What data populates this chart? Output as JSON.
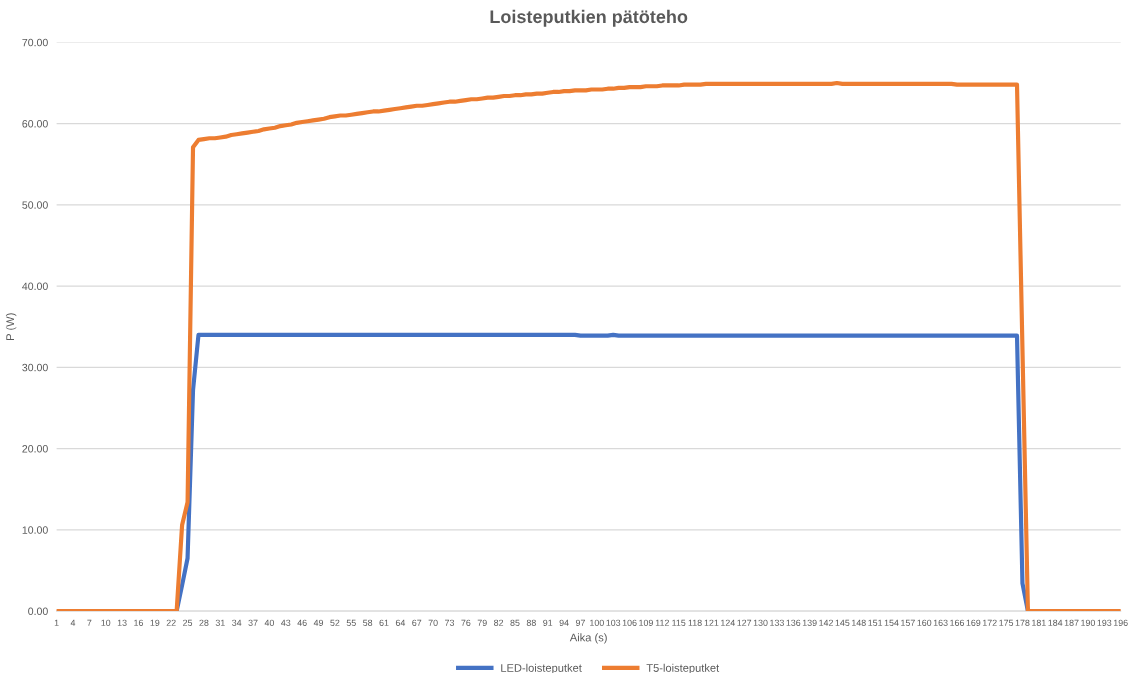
{
  "chart_data": {
    "type": "line",
    "title": "Loisteputkien pätöteho",
    "xlabel": "Aika (s)",
    "ylabel": "P (W)",
    "x": [
      1,
      2,
      3,
      4,
      5,
      6,
      7,
      8,
      9,
      10,
      11,
      12,
      13,
      14,
      15,
      16,
      17,
      18,
      19,
      20,
      21,
      22,
      23,
      24,
      25,
      26,
      27,
      28,
      29,
      30,
      31,
      32,
      33,
      34,
      35,
      36,
      37,
      38,
      39,
      40,
      41,
      42,
      43,
      44,
      45,
      46,
      47,
      48,
      49,
      50,
      51,
      52,
      53,
      54,
      55,
      56,
      57,
      58,
      59,
      60,
      61,
      62,
      63,
      64,
      65,
      66,
      67,
      68,
      69,
      70,
      71,
      72,
      73,
      74,
      75,
      76,
      77,
      78,
      79,
      80,
      81,
      82,
      83,
      84,
      85,
      86,
      87,
      88,
      89,
      90,
      91,
      92,
      93,
      94,
      95,
      96,
      97,
      98,
      99,
      100,
      101,
      102,
      103,
      104,
      105,
      106,
      107,
      108,
      109,
      110,
      111,
      112,
      113,
      114,
      115,
      116,
      117,
      118,
      119,
      120,
      121,
      122,
      123,
      124,
      125,
      126,
      127,
      128,
      129,
      130,
      131,
      132,
      133,
      134,
      135,
      136,
      137,
      138,
      139,
      140,
      141,
      142,
      143,
      144,
      145,
      146,
      147,
      148,
      149,
      150,
      151,
      152,
      153,
      154,
      155,
      156,
      157,
      158,
      159,
      160,
      161,
      162,
      163,
      164,
      165,
      166,
      167,
      168,
      169,
      170,
      171,
      172,
      173,
      174,
      175,
      176,
      177,
      178,
      179,
      180,
      181,
      182,
      183,
      184,
      185,
      186,
      187,
      188,
      189,
      190,
      191,
      192,
      193,
      194,
      195,
      196
    ],
    "series": [
      {
        "name": "LED-loisteputket",
        "color": "#4472c4",
        "values": [
          null,
          null,
          null,
          null,
          null,
          null,
          null,
          null,
          null,
          null,
          null,
          null,
          null,
          null,
          null,
          null,
          null,
          null,
          null,
          null,
          null,
          0,
          0,
          3.2,
          6.5,
          27.2,
          34.0,
          34.0,
          34.0,
          34.0,
          34.0,
          34.0,
          34.0,
          34.0,
          34.0,
          34.0,
          34.0,
          34.0,
          34.0,
          34.0,
          34.0,
          34.0,
          34.0,
          34.0,
          34.0,
          34.0,
          34.0,
          34.0,
          34.0,
          34.0,
          34.0,
          34.0,
          34.0,
          34.0,
          34.0,
          34.0,
          34.0,
          34.0,
          34.0,
          34.0,
          34.0,
          34.0,
          34.0,
          34.0,
          34.0,
          34.0,
          34.0,
          34.0,
          34.0,
          34.0,
          34.0,
          34.0,
          34.0,
          34.0,
          34.0,
          34.0,
          34.0,
          34.0,
          34.0,
          34.0,
          34.0,
          34.0,
          34.0,
          34.0,
          34.0,
          34.0,
          34.0,
          34.0,
          34.0,
          34.0,
          34.0,
          34.0,
          34.0,
          34.0,
          34.0,
          34.0,
          33.9,
          33.9,
          33.9,
          33.9,
          33.9,
          33.9,
          34.0,
          33.9,
          33.9,
          33.9,
          33.9,
          33.9,
          33.9,
          33.9,
          33.9,
          33.9,
          33.9,
          33.9,
          33.9,
          33.9,
          33.9,
          33.9,
          33.9,
          33.9,
          33.9,
          33.9,
          33.9,
          33.9,
          33.9,
          33.9,
          33.9,
          33.9,
          33.9,
          33.9,
          33.9,
          33.9,
          33.9,
          33.9,
          33.9,
          33.9,
          33.9,
          33.9,
          33.9,
          33.9,
          33.9,
          33.9,
          33.9,
          33.9,
          33.9,
          33.9,
          33.9,
          33.9,
          33.9,
          33.9,
          33.9,
          33.9,
          33.9,
          33.9,
          33.9,
          33.9,
          33.9,
          33.9,
          33.9,
          33.9,
          33.9,
          33.9,
          33.9,
          33.9,
          33.9,
          33.9,
          33.9,
          33.9,
          33.9,
          33.9,
          33.9,
          33.9,
          33.9,
          33.9,
          33.9,
          33.9,
          33.9,
          3.4,
          0,
          0,
          null,
          null,
          null,
          null,
          null,
          null,
          null,
          null,
          null,
          null,
          null,
          null,
          null,
          null,
          null,
          null
        ]
      },
      {
        "name": "T5-loisteputket",
        "color": "#ed7d31",
        "values": [
          0,
          0,
          0,
          0,
          0,
          0,
          0,
          0,
          0,
          0,
          0,
          0,
          0,
          0,
          0,
          0,
          0,
          0,
          0,
          0,
          0,
          0,
          0,
          10.6,
          13.4,
          57.1,
          58.0,
          58.1,
          58.2,
          58.2,
          58.3,
          58.4,
          58.6,
          58.7,
          58.8,
          58.9,
          59.0,
          59.1,
          59.3,
          59.4,
          59.5,
          59.7,
          59.8,
          59.9,
          60.1,
          60.2,
          60.3,
          60.4,
          60.5,
          60.6,
          60.8,
          60.9,
          61.0,
          61.0,
          61.1,
          61.2,
          61.3,
          61.4,
          61.5,
          61.5,
          61.6,
          61.7,
          61.8,
          61.9,
          62.0,
          62.1,
          62.2,
          62.2,
          62.3,
          62.4,
          62.5,
          62.6,
          62.7,
          62.7,
          62.8,
          62.9,
          63.0,
          63.0,
          63.1,
          63.2,
          63.2,
          63.3,
          63.4,
          63.4,
          63.5,
          63.5,
          63.6,
          63.6,
          63.7,
          63.7,
          63.8,
          63.9,
          63.9,
          64.0,
          64.0,
          64.1,
          64.1,
          64.1,
          64.2,
          64.2,
          64.2,
          64.3,
          64.3,
          64.4,
          64.4,
          64.5,
          64.5,
          64.5,
          64.6,
          64.6,
          64.6,
          64.7,
          64.7,
          64.7,
          64.7,
          64.8,
          64.8,
          64.8,
          64.8,
          64.9,
          64.9,
          64.9,
          64.9,
          64.9,
          64.9,
          64.9,
          64.9,
          64.9,
          64.9,
          64.9,
          64.9,
          64.9,
          64.9,
          64.9,
          64.9,
          64.9,
          64.9,
          64.9,
          64.9,
          64.9,
          64.9,
          64.9,
          64.9,
          65.0,
          64.9,
          64.9,
          64.9,
          64.9,
          64.9,
          64.9,
          64.9,
          64.9,
          64.9,
          64.9,
          64.9,
          64.9,
          64.9,
          64.9,
          64.9,
          64.9,
          64.9,
          64.9,
          64.9,
          64.9,
          64.9,
          64.8,
          64.8,
          64.8,
          64.8,
          64.8,
          64.8,
          64.8,
          64.8,
          64.8,
          64.8,
          64.8,
          64.8,
          32.3,
          0,
          0,
          0,
          0,
          0,
          0,
          0,
          0,
          0,
          0,
          0,
          0,
          0,
          0,
          0,
          0,
          0,
          0
        ]
      }
    ],
    "xlim": [
      1,
      196
    ],
    "xticks": [
      1,
      4,
      7,
      10,
      13,
      16,
      19,
      22,
      25,
      28,
      31,
      34,
      37,
      40,
      43,
      46,
      49,
      52,
      55,
      58,
      61,
      64,
      67,
      70,
      73,
      76,
      79,
      82,
      85,
      88,
      91,
      94,
      97,
      100,
      103,
      106,
      109,
      112,
      115,
      118,
      121,
      124,
      127,
      130,
      133,
      136,
      139,
      142,
      145,
      148,
      151,
      154,
      157,
      160,
      163,
      166,
      169,
      172,
      175,
      178,
      181,
      184,
      187,
      190,
      193,
      196
    ],
    "ylim": [
      0,
      70
    ],
    "yticks": [
      {
        "value": 0,
        "label": "0.00"
      },
      {
        "value": 10,
        "label": "10.00"
      },
      {
        "value": 20,
        "label": "20.00"
      },
      {
        "value": 30,
        "label": "30.00"
      },
      {
        "value": 40,
        "label": "40.00"
      },
      {
        "value": 50,
        "label": "50.00"
      },
      {
        "value": 60,
        "label": "60.00"
      },
      {
        "value": 70,
        "label": "70.00"
      }
    ],
    "grid": "y",
    "legend": "bottom",
    "marker": "none",
    "line_style": "solid"
  }
}
